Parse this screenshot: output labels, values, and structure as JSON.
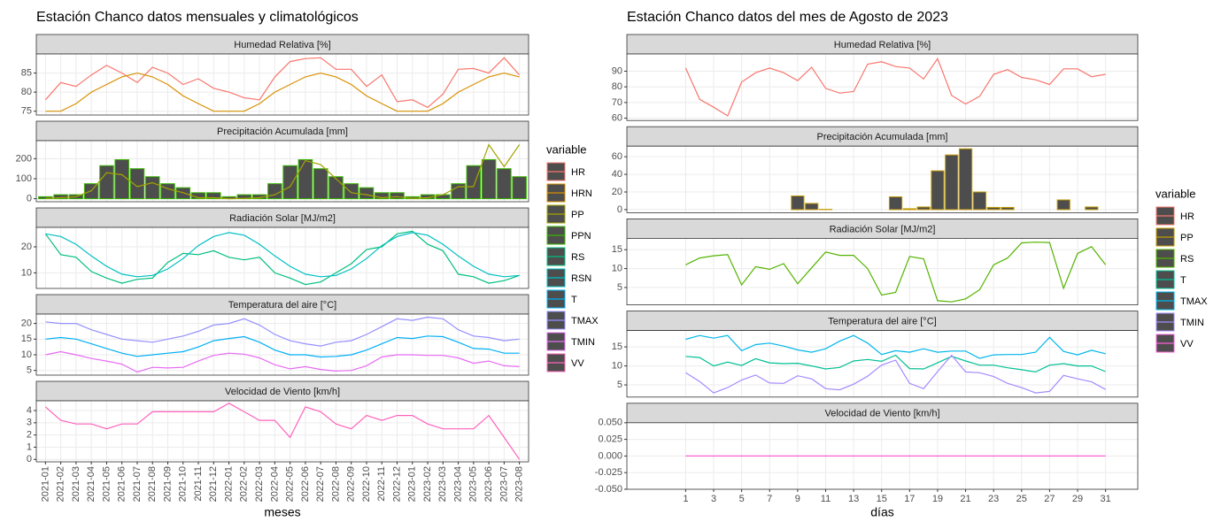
{
  "chart_data": [
    {
      "type": "line",
      "title": "Estación Chanco datos mensuales y climatológicos",
      "xlabel": "meses",
      "legend_title": "variable",
      "grid": true,
      "categories": [
        "2021-01",
        "2021-02",
        "2021-03",
        "2021-04",
        "2021-05",
        "2021-06",
        "2021-07",
        "2021-08",
        "2021-09",
        "2021-10",
        "2021-11",
        "2021-12",
        "2022-01",
        "2022-02",
        "2022-03",
        "2022-04",
        "2022-05",
        "2022-06",
        "2022-07",
        "2022-08",
        "2022-09",
        "2022-10",
        "2022-11",
        "2022-12",
        "2023-01",
        "2023-02",
        "2023-03",
        "2023-04",
        "2023-05",
        "2023-06",
        "2023-07",
        "2023-08"
      ],
      "panels": [
        {
          "title": "Humedad Relativa [%]",
          "ylim": [
            74,
            90
          ],
          "yticks": [
            75,
            80,
            85
          ],
          "series": [
            {
              "name": "HR",
              "type": "line",
              "color": "#F8766D",
              "values": [
                78,
                82.5,
                81.5,
                84.5,
                87,
                85,
                82.5,
                86.5,
                85,
                82,
                83.5,
                81,
                80,
                78.5,
                78,
                84,
                88,
                88.8,
                89,
                86,
                86,
                81.5,
                84.5,
                77.5,
                78,
                76,
                79.5,
                86,
                86.2,
                85,
                89,
                84.5
              ]
            },
            {
              "name": "HRN",
              "type": "line",
              "color": "#D89000",
              "values": [
                75,
                75,
                77,
                80,
                82,
                84,
                85,
                84,
                82,
                79,
                77,
                75,
                75,
                75,
                77,
                80,
                82,
                84,
                85,
                84,
                82,
                79,
                77,
                75,
                75,
                75,
                77,
                80,
                82,
                84,
                85,
                84
              ]
            }
          ]
        },
        {
          "title": "Precipitación Acumulada [mm]",
          "ylim": [
            -15,
            290
          ],
          "yticks": [
            0,
            100,
            200
          ],
          "series": [
            {
              "name": "PP",
              "type": "line",
              "color": "#A3A500",
              "values": [
                2,
                5,
                10,
                40,
                130,
                120,
                60,
                80,
                50,
                30,
                5,
                5,
                0,
                2,
                5,
                20,
                60,
                190,
                170,
                100,
                30,
                20,
                5,
                10,
                2,
                5,
                20,
                60,
                60,
                270,
                160,
                270
              ]
            },
            {
              "name": "PPN",
              "type": "bar",
              "color": "#39B600",
              "fill": "#4d4d4d",
              "values": [
                10,
                20,
                20,
                75,
                165,
                195,
                150,
                110,
                75,
                55,
                30,
                30,
                10,
                20,
                20,
                75,
                165,
                195,
                150,
                110,
                75,
                55,
                30,
                30,
                10,
                20,
                20,
                75,
                165,
                195,
                150,
                110
              ]
            }
          ]
        },
        {
          "title": "Radiación Solar [MJ/m2]",
          "ylim": [
            4,
            27.5
          ],
          "yticks": [
            10,
            20
          ],
          "series": [
            {
              "name": "RS",
              "type": "line",
              "color": "#00BF7D",
              "values": [
                25,
                17,
                16,
                10.5,
                8,
                6,
                7.5,
                8,
                14,
                17.5,
                17,
                18.5,
                16,
                15,
                16,
                10,
                8,
                5.5,
                6.5,
                10,
                13.5,
                19,
                20,
                25,
                26,
                21,
                18.5,
                9.5,
                8.5,
                6,
                7,
                9
              ]
            },
            {
              "name": "RSN",
              "type": "line",
              "color": "#00BFC4",
              "values": [
                25,
                24,
                21,
                16.5,
                12.5,
                9.5,
                8.5,
                9,
                11.5,
                15.5,
                20.5,
                24,
                25.5,
                24.5,
                21,
                16.5,
                12.5,
                9.5,
                8.5,
                9,
                11.5,
                15.5,
                20.5,
                24,
                25.5,
                24.5,
                21,
                16.5,
                12.5,
                9.5,
                8.5,
                9
              ]
            }
          ]
        },
        {
          "title": "Temperatura del aire [°C]",
          "ylim": [
            3.5,
            23
          ],
          "yticks": [
            5,
            10,
            15,
            20
          ],
          "series": [
            {
              "name": "T",
              "type": "line",
              "color": "#00B0F6",
              "values": [
                15,
                15.5,
                15,
                13.5,
                12,
                10.5,
                9.5,
                10,
                10.5,
                11,
                12.5,
                14.5,
                15.2,
                15.8,
                14,
                11.5,
                10,
                10,
                9.3,
                9.5,
                10,
                11.5,
                13.5,
                15.5,
                15.2,
                16,
                15.8,
                14,
                12,
                11.8,
                10.5,
                10.5
              ]
            },
            {
              "name": "TMAX",
              "type": "line",
              "color": "#9590FF",
              "values": [
                20.5,
                20,
                20,
                18,
                16.5,
                15,
                14.5,
                14,
                15,
                16,
                17.5,
                19.5,
                20,
                21.5,
                19.5,
                16.5,
                14.5,
                13.5,
                12.8,
                14,
                14.5,
                16.5,
                19,
                21.5,
                21,
                22,
                21.5,
                18,
                16,
                15.5,
                14.5,
                15
              ]
            },
            {
              "name": "TMIN",
              "type": "line",
              "color": "#E76BF3",
              "values": [
                10,
                11,
                10,
                8.8,
                8,
                7,
                4.5,
                6,
                5.8,
                6,
                8,
                9.8,
                10.5,
                10.2,
                9,
                6.8,
                5.5,
                6.2,
                5.3,
                4.8,
                5,
                6.5,
                9.3,
                10,
                10,
                9.8,
                9.8,
                9,
                7.3,
                8,
                6.5,
                6.2
              ]
            }
          ]
        },
        {
          "title": "Velocidad de Viento [km/h]",
          "ylim": [
            -0.2,
            4.8
          ],
          "yticks": [
            0,
            1,
            2,
            3,
            4
          ],
          "series": [
            {
              "name": "VV",
              "type": "line",
              "color": "#FF62BC",
              "values": [
                4.3,
                3.2,
                2.9,
                2.9,
                2.5,
                2.9,
                2.9,
                3.9,
                3.9,
                3.9,
                3.9,
                3.9,
                4.6,
                3.9,
                3.2,
                3.2,
                1.8,
                4.3,
                3.9,
                2.9,
                2.5,
                3.6,
                3.2,
                3.6,
                3.6,
                2.9,
                2.5,
                2.5,
                2.5,
                3.6,
                1.8,
                0
              ]
            }
          ]
        }
      ]
    },
    {
      "type": "line",
      "title": "Estación Chanco datos del mes de Agosto de 2023",
      "xlabel": "días",
      "legend_title": "variable",
      "grid": true,
      "x": [
        1,
        2,
        3,
        4,
        5,
        6,
        7,
        8,
        9,
        10,
        11,
        12,
        13,
        14,
        15,
        16,
        17,
        18,
        19,
        20,
        21,
        22,
        23,
        24,
        25,
        26,
        27,
        28,
        29,
        30,
        31
      ],
      "xlim": [
        -3.2,
        33.3
      ],
      "xticks": [
        1,
        3,
        5,
        7,
        9,
        11,
        13,
        15,
        17,
        19,
        21,
        23,
        25,
        27,
        29,
        31
      ],
      "panels": [
        {
          "title": "Humedad Relativa [%]",
          "ylim": [
            58.5,
            101
          ],
          "yticks": [
            60,
            70,
            80,
            90
          ],
          "series": [
            {
              "name": "HR",
              "type": "line",
              "color": "#F8766D",
              "values": [
                92,
                72,
                67,
                61.5,
                83,
                89,
                92,
                89,
                84,
                92.5,
                79,
                76,
                77,
                94.5,
                96,
                93,
                92,
                85,
                98,
                74.5,
                69,
                74,
                88,
                91,
                86,
                84.5,
                81.5,
                91.5,
                91.5,
                86.5,
                88
              ]
            }
          ]
        },
        {
          "title": "Precipitación Acumulada [mm]",
          "ylim": [
            -3.5,
            72
          ],
          "yticks": [
            0,
            20,
            40,
            60
          ],
          "series": [
            {
              "name": "PP",
              "type": "bar",
              "color": "#C49A00",
              "fill": "#4d4d4d",
              "values": [
                0,
                0,
                0,
                0,
                0,
                0,
                0,
                0,
                15.5,
                7,
                0.3,
                0,
                0,
                0,
                0,
                14.5,
                1,
                3,
                44,
                62,
                69,
                20,
                2.5,
                2.5,
                0,
                0,
                0,
                11,
                0,
                3,
                0
              ]
            }
          ]
        },
        {
          "title": "Radiación Solar [MJ/m2]",
          "ylim": [
            0.4,
            18
          ],
          "yticks": [
            5,
            10,
            15
          ],
          "series": [
            {
              "name": "RS",
              "type": "line",
              "color": "#53B400",
              "values": [
                11,
                12.8,
                13.4,
                13.7,
                5.7,
                10.5,
                9.8,
                11.3,
                6,
                10.2,
                14.4,
                13.5,
                13.5,
                10,
                3,
                3.7,
                13.2,
                12.6,
                1.5,
                1.2,
                2,
                4.4,
                11,
                12.8,
                16.8,
                17,
                16.9,
                4.8,
                14,
                15.8,
                11
              ]
            }
          ]
        },
        {
          "title": "Temperatura del aire [°C]",
          "ylim": [
            1.8,
            19.3
          ],
          "yticks": [
            5,
            10,
            15
          ],
          "series": [
            {
              "name": "T",
              "type": "line",
              "color": "#00C094",
              "values": [
                12.5,
                12.2,
                10,
                11,
                10.1,
                11.9,
                10.8,
                10.6,
                10.7,
                10,
                9.2,
                9.6,
                11.3,
                11.7,
                11.2,
                12.8,
                9.3,
                9.2,
                10.8,
                12.5,
                11.3,
                10.2,
                10.2,
                9.5,
                9,
                8.4,
                10.2,
                10.6,
                10,
                10,
                8.5
              ]
            },
            {
              "name": "TMAX",
              "type": "line",
              "color": "#00B6EB",
              "values": [
                17,
                18,
                17.3,
                18,
                14,
                15.6,
                16,
                15.2,
                14.2,
                13.6,
                14.5,
                16.5,
                18,
                16,
                13,
                14,
                13.6,
                14.5,
                13.6,
                13.9,
                13.9,
                12,
                12.9,
                13,
                13,
                13.6,
                17.5,
                13.8,
                12.9,
                14.1,
                13.2
              ]
            },
            {
              "name": "TMIN",
              "type": "line",
              "color": "#A58AFF",
              "values": [
                8.2,
                5.9,
                2.9,
                4.3,
                6.3,
                7.6,
                5.5,
                5.4,
                7.4,
                6.6,
                4,
                3.7,
                5.2,
                7.3,
                10.2,
                11.5,
                5.4,
                4,
                8.5,
                12.8,
                8.4,
                8.2,
                7.2,
                5.4,
                4.3,
                2.9,
                3.3,
                7.5,
                6.6,
                5.8,
                3.8
              ]
            }
          ]
        },
        {
          "title": "Velocidad de Viento [km/h]",
          "ylim": [
            -0.05,
            0.05
          ],
          "yticks": [
            {
              "value": -0.05,
              "label": "-0.050"
            },
            {
              "value": -0.025,
              "label": "-0.025"
            },
            {
              "value": 0,
              "label": "0.000"
            },
            {
              "value": 0.025,
              "label": "0.025"
            },
            {
              "value": 0.05,
              "label": "0.050"
            }
          ],
          "series": [
            {
              "name": "VV",
              "type": "line",
              "color": "#FB61D7",
              "values": [
                0,
                0,
                0,
                0,
                0,
                0,
                0,
                0,
                0,
                0,
                0,
                0,
                0,
                0,
                0,
                0,
                0,
                0,
                0,
                0,
                0,
                0,
                0,
                0,
                0,
                0,
                0,
                0,
                0,
                0,
                0
              ]
            }
          ]
        }
      ]
    }
  ]
}
